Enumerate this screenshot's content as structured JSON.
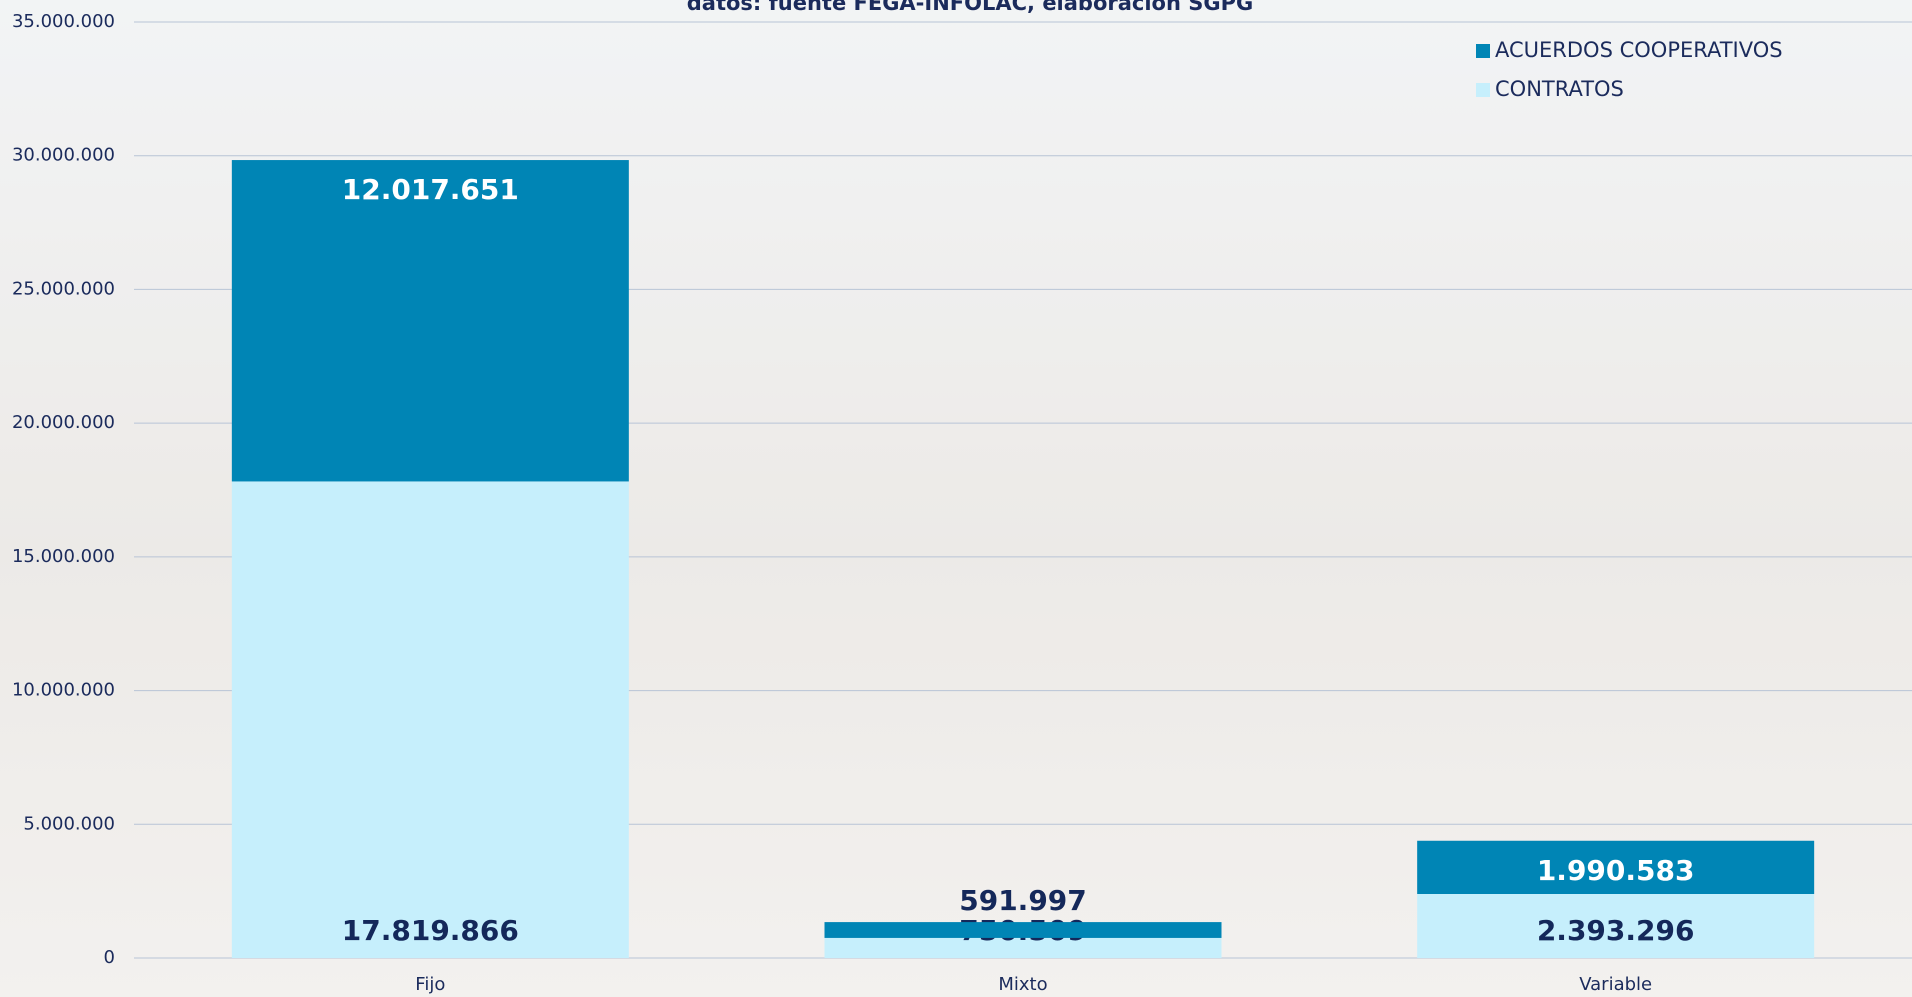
{
  "chart_data": {
    "type": "stacked_bar",
    "title": "datos: fuente FEGA-INFOLAC, elaboración SGPG",
    "categories": [
      "Fijo",
      "Mixto",
      "Variable"
    ],
    "series": [
      {
        "name": "CONTRATOS",
        "color": "#c6effc",
        "values": [
          17819866,
          750509,
          2393296
        ],
        "value_labels": [
          "17.819.866",
          "750.509",
          "2.393.296"
        ]
      },
      {
        "name": "ACUERDOS COOPERATIVOS",
        "color": "#0085b5",
        "values": [
          12017651,
          591997,
          1990583
        ],
        "value_labels": [
          "12.017.651",
          "591.997",
          "1.990.583"
        ]
      }
    ],
    "ylim": [
      0,
      35000000
    ],
    "yticks": [
      0,
      {
        "value": 5000000,
        "label": "5.000.000"
      },
      {
        "value": 10000000,
        "label": "10.000.000"
      },
      {
        "value": 15000000,
        "label": "15.000.000"
      },
      {
        "value": 20000000,
        "label": "20.000.000"
      },
      {
        "value": 25000000,
        "label": "25.000.000"
      },
      {
        "value": 30000000,
        "label": "30.000.000"
      },
      {
        "value": 35000000,
        "label": "35.000.000"
      }
    ],
    "grid": true,
    "legend": "top-right"
  }
}
